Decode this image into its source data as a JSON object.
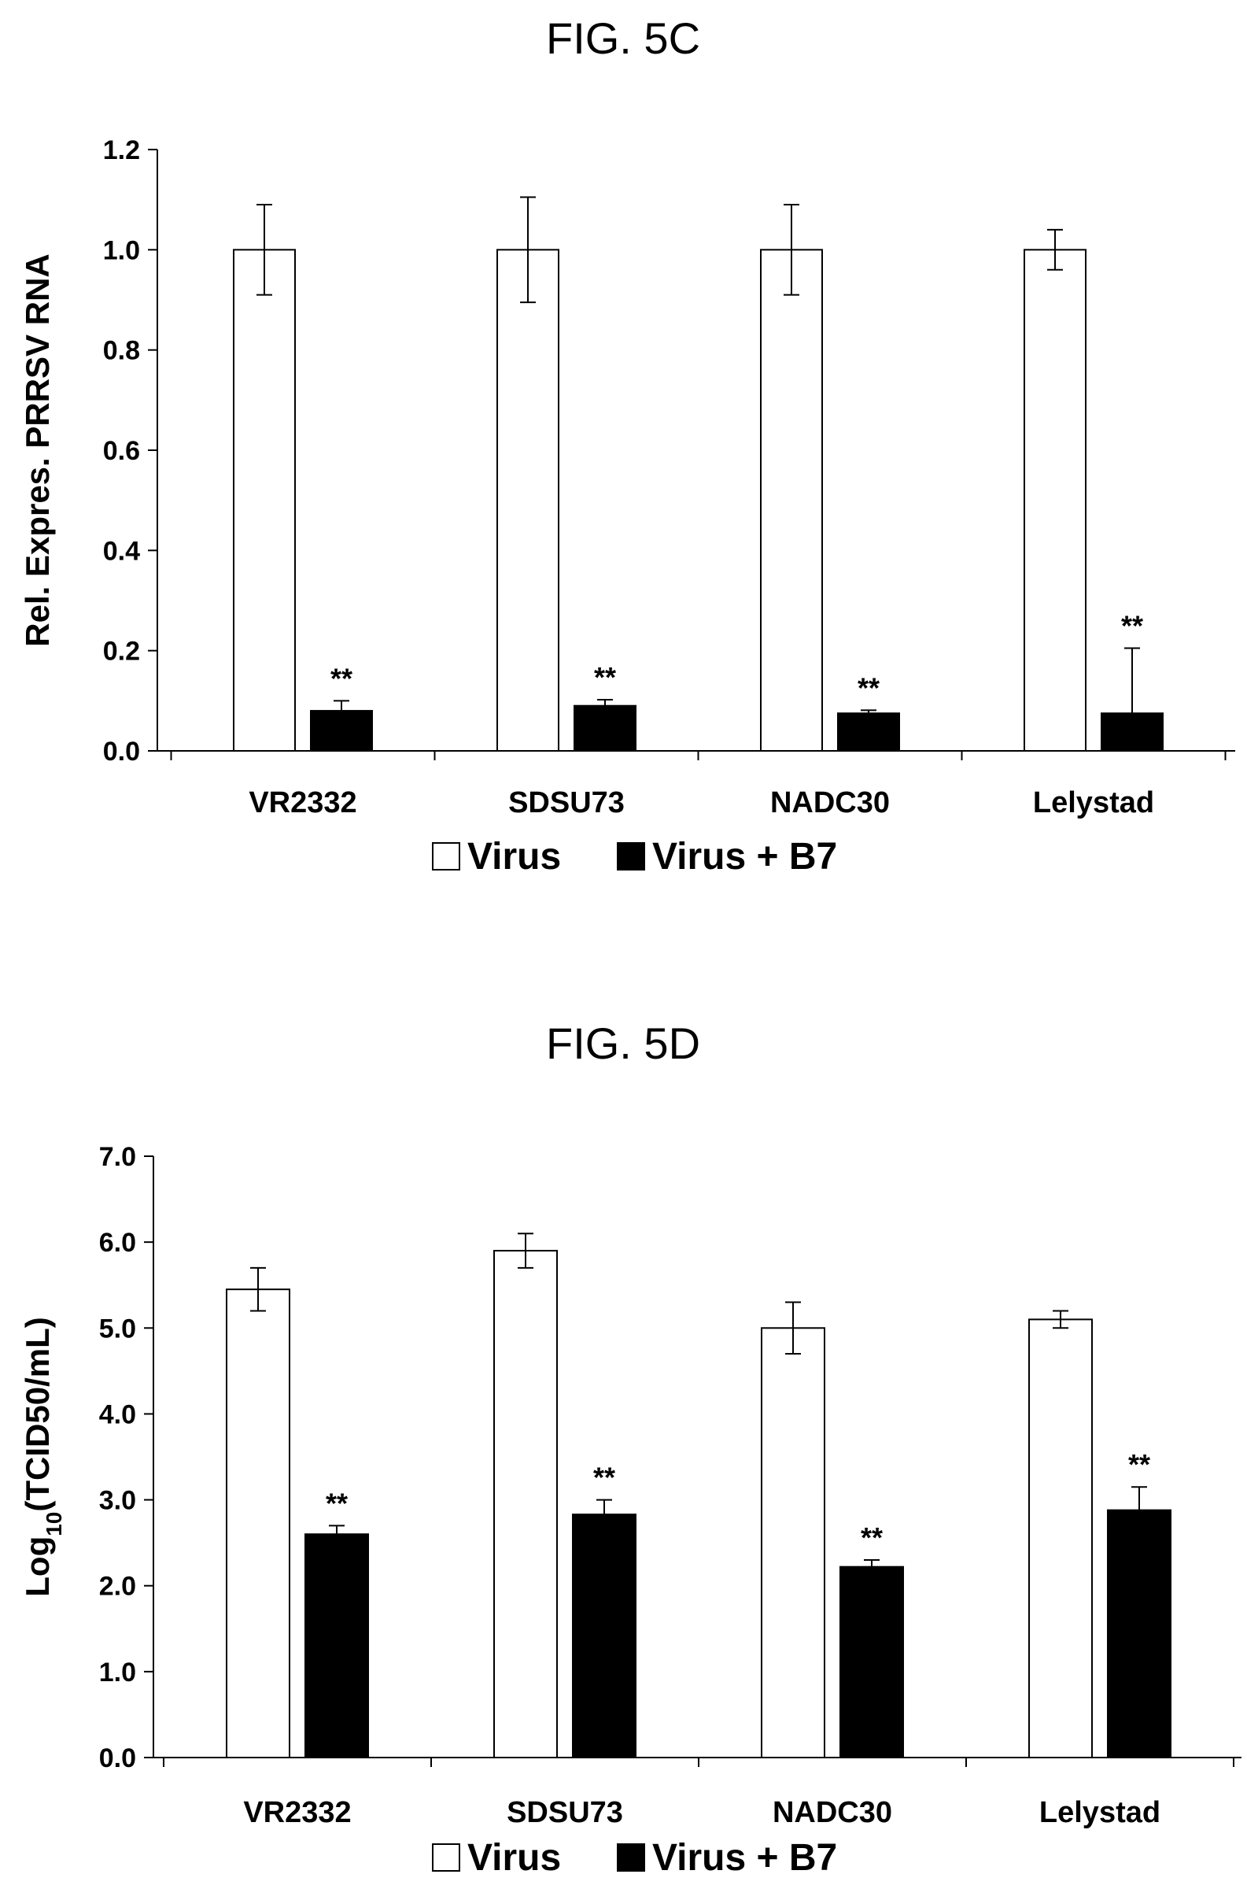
{
  "chart_data": [
    {
      "type": "bar",
      "title": "FIG. 5C",
      "ylabel": "Rel. Expres. PRRSV RNA",
      "ylabel_sub": "",
      "ylabel_tail": "",
      "xlabel": "",
      "ylim": [
        0,
        1.2
      ],
      "yticks": [
        "0.0",
        "0.2",
        "0.4",
        "0.6",
        "0.8",
        "1.0",
        "1.2"
      ],
      "categories": [
        "VR2332",
        "SDSU73",
        "NADC30",
        "Lelystad"
      ],
      "series": [
        {
          "name": "Virus",
          "color": "#ffffff",
          "values": [
            1.0,
            1.0,
            1.0,
            1.0
          ],
          "errors": [
            0.09,
            0.105,
            0.09,
            0.04
          ]
        },
        {
          "name": "Virus + B7",
          "color": "#000000",
          "values": [
            0.08,
            0.09,
            0.075,
            0.075
          ],
          "errors": [
            0.02,
            0.012,
            0.006,
            0.13
          ]
        }
      ],
      "annotations": [
        "**",
        "**",
        "**",
        "**"
      ],
      "legend_position": "bottom"
    },
    {
      "type": "bar",
      "title": "FIG. 5D",
      "ylabel": "Log",
      "ylabel_sub": "10",
      "ylabel_tail": "(TCID50/mL)",
      "xlabel": "",
      "ylim": [
        0,
        7
      ],
      "yticks": [
        "0.0",
        "1.0",
        "2.0",
        "3.0",
        "4.0",
        "5.0",
        "6.0",
        "7.0"
      ],
      "categories": [
        "VR2332",
        "SDSU73",
        "NADC30",
        "Lelystad"
      ],
      "series": [
        {
          "name": "Virus",
          "color": "#ffffff",
          "values": [
            5.45,
            5.9,
            5.0,
            5.1
          ],
          "errors": [
            0.25,
            0.2,
            0.3,
            0.1
          ]
        },
        {
          "name": "Virus + B7",
          "color": "#000000",
          "values": [
            2.6,
            2.83,
            2.22,
            2.88
          ],
          "errors": [
            0.1,
            0.17,
            0.08,
            0.27
          ]
        }
      ],
      "annotations": [
        "**",
        "**",
        "**",
        "**"
      ],
      "legend_position": "bottom"
    }
  ]
}
